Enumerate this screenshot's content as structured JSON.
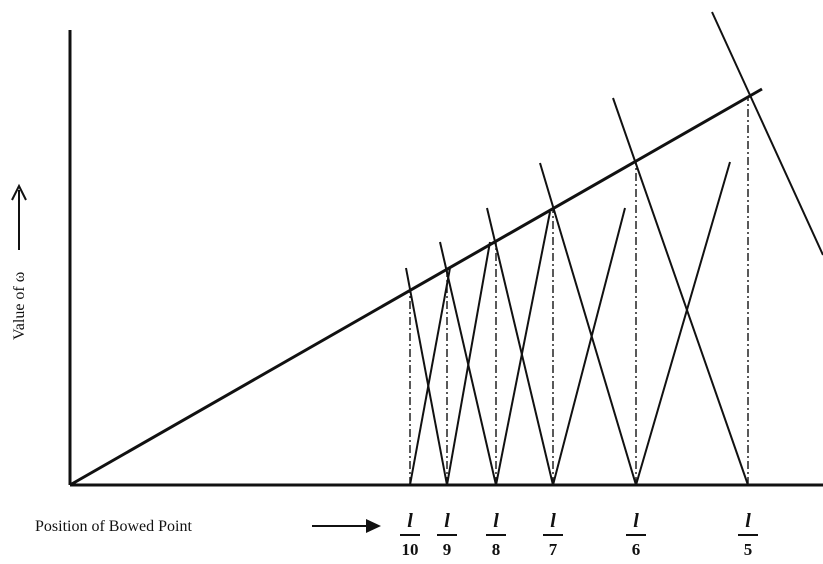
{
  "y_axis_label": "Value of ω",
  "x_axis_label": "Position of Bowed Point",
  "ticks": [
    {
      "numerator": "l",
      "denominator": "10"
    },
    {
      "numerator": "l",
      "denominator": "9"
    },
    {
      "numerator": "l",
      "denominator": "8"
    },
    {
      "numerator": "l",
      "denominator": "7"
    },
    {
      "numerator": "l",
      "denominator": "6"
    },
    {
      "numerator": "l",
      "denominator": "5"
    }
  ]
}
